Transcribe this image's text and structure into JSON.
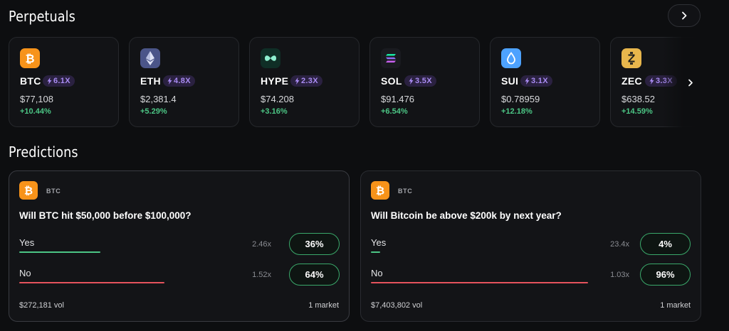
{
  "sections": {
    "perpetuals_title": "Perpetuals",
    "predictions_title": "Predictions"
  },
  "perpetuals": [
    {
      "ticker": "BTC",
      "leverage": "6.1X",
      "price": "$77,108",
      "change": "+10.44%",
      "icon": "bitcoin-icon"
    },
    {
      "ticker": "ETH",
      "leverage": "4.8X",
      "price": "$2,381.4",
      "change": "+5.29%",
      "icon": "ethereum-icon"
    },
    {
      "ticker": "HYPE",
      "leverage": "2.3X",
      "price": "$74.208",
      "change": "+3.16%",
      "icon": "hyperliquid-icon"
    },
    {
      "ticker": "SOL",
      "leverage": "3.5X",
      "price": "$91.476",
      "change": "+6.54%",
      "icon": "solana-icon"
    },
    {
      "ticker": "SUI",
      "leverage": "3.1X",
      "price": "$0.78959",
      "change": "+12.18%",
      "icon": "sui-icon"
    },
    {
      "ticker": "ZEC",
      "leverage": "3.3X",
      "price": "$638.52",
      "change": "+14.59%",
      "icon": "zcash-icon"
    }
  ],
  "predictions": [
    {
      "tag": "BTC",
      "question": "Will BTC hit $50,000 before $100,000?",
      "options": [
        {
          "label": "Yes",
          "multiplier": "2.46x",
          "price": "36%",
          "probability": 0.36,
          "color": "#4cc685"
        },
        {
          "label": "No",
          "multiplier": "1.52x",
          "price": "64%",
          "probability": 0.64,
          "color": "#e5535d"
        }
      ],
      "volume": "$272,181 vol",
      "markets": "1 market"
    },
    {
      "tag": "BTC",
      "question": "Will Bitcoin be above $200k by next year?",
      "options": [
        {
          "label": "Yes",
          "multiplier": "23.4x",
          "price": "4%",
          "probability": 0.04,
          "color": "#4cc685"
        },
        {
          "label": "No",
          "multiplier": "1.03x",
          "price": "96%",
          "probability": 0.96,
          "color": "#e5535d"
        }
      ],
      "volume": "$7,403,802 vol",
      "markets": "1 market"
    }
  ],
  "colors": {
    "positive": "#4cc685",
    "negative": "#e5535d",
    "leverage_badge": "#a98bf2",
    "bitcoin": "#f7931a"
  }
}
